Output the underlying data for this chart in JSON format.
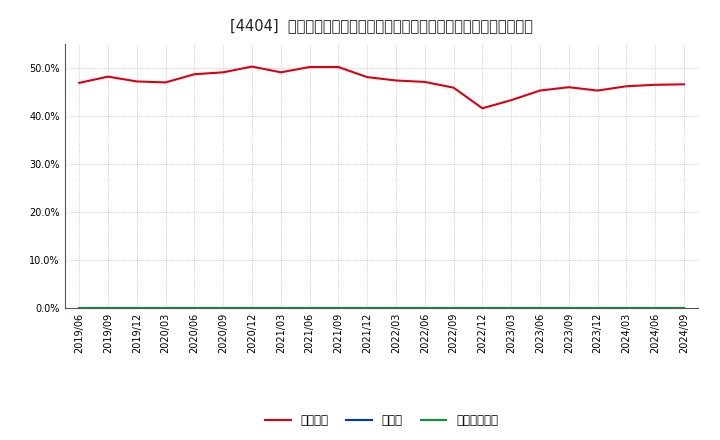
{
  "title": "[4404]  自己資本、のれん、繰延税金資産の総資産に対する比率の推移",
  "x_labels": [
    "2019/06",
    "2019/09",
    "2019/12",
    "2020/03",
    "2020/06",
    "2020/09",
    "2020/12",
    "2021/03",
    "2021/06",
    "2021/09",
    "2021/12",
    "2022/03",
    "2022/06",
    "2022/09",
    "2022/12",
    "2023/03",
    "2023/06",
    "2023/09",
    "2023/12",
    "2024/03",
    "2024/06",
    "2024/09"
  ],
  "equity_ratio": [
    0.469,
    0.482,
    0.472,
    0.47,
    0.487,
    0.491,
    0.503,
    0.491,
    0.502,
    0.502,
    0.481,
    0.474,
    0.471,
    0.459,
    0.416,
    0.433,
    0.453,
    0.46,
    0.453,
    0.462,
    0.465,
    0.466
  ],
  "goodwill_ratio": [
    0,
    0,
    0,
    0,
    0,
    0,
    0,
    0,
    0,
    0,
    0,
    0,
    0,
    0,
    0,
    0,
    0,
    0,
    0,
    0,
    0,
    0
  ],
  "deferred_tax_ratio": [
    0,
    0,
    0,
    0,
    0,
    0,
    0,
    0,
    0,
    0,
    0,
    0,
    0,
    0,
    0,
    0,
    0,
    0,
    0,
    0,
    0,
    0
  ],
  "equity_color": "#dd0011",
  "goodwill_color": "#0033cc",
  "deferred_tax_color": "#009933",
  "background_color": "#ffffff",
  "plot_bg_color": "#ffffff",
  "grid_color": "#999999",
  "ylim": [
    0.0,
    0.55
  ],
  "yticks": [
    0.0,
    0.1,
    0.2,
    0.3,
    0.4,
    0.5
  ],
  "legend_labels": [
    "自己資本",
    "のれん",
    "繰延税金資産"
  ],
  "title_fontsize": 10.5,
  "tick_fontsize": 7,
  "legend_fontsize": 8.5
}
